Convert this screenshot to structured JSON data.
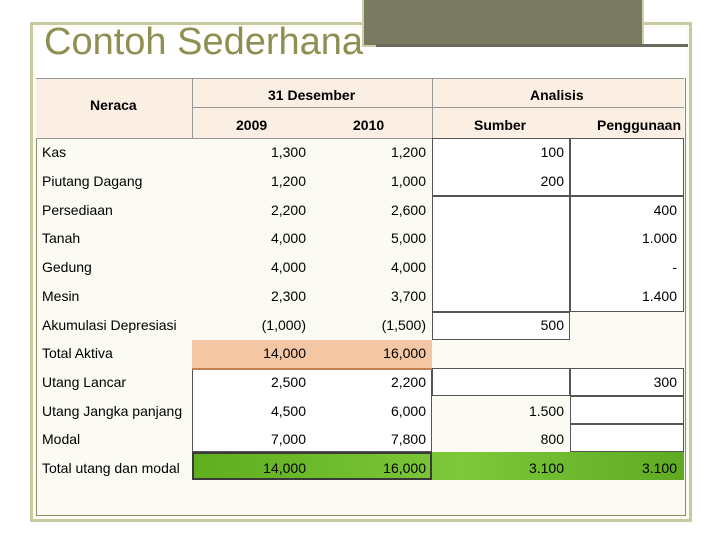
{
  "title": "Contoh Sederhana",
  "headers": {
    "neraca": "Neraca",
    "desember": "31 Desember",
    "y2009": "2009",
    "y2010": "2010",
    "analisis": "Analisis",
    "sumber": "Sumber",
    "penggunaan": "Penggunaan"
  },
  "rows": [
    {
      "label": "Kas",
      "y2009": "1,300",
      "y2010": "1,200",
      "sumber": "100",
      "penggunaan": ""
    },
    {
      "label": "Piutang Dagang",
      "y2009": "1,200",
      "y2010": "1,000",
      "sumber": "200",
      "penggunaan": ""
    },
    {
      "label": "Persediaan",
      "y2009": "2,200",
      "y2010": "2,600",
      "sumber": "",
      "penggunaan": "400"
    },
    {
      "label": "Tanah",
      "y2009": "4,000",
      "y2010": "5,000",
      "sumber": "",
      "penggunaan": "1.000"
    },
    {
      "label": "Gedung",
      "y2009": "4,000",
      "y2010": "4,000",
      "sumber": "",
      "penggunaan": "-"
    },
    {
      "label": "Mesin",
      "y2009": "2,300",
      "y2010": "3,700",
      "sumber": "",
      "penggunaan": "1.400"
    },
    {
      "label": "Akumulasi Depresiasi",
      "y2009": "(1,000)",
      "y2010": "(1,500)",
      "sumber": "500",
      "penggunaan": ""
    },
    {
      "label": "Total Aktiva",
      "y2009": "14,000",
      "y2010": "16,000",
      "sumber": "",
      "penggunaan": ""
    },
    {
      "label": "Utang Lancar",
      "y2009": "2,500",
      "y2010": "2,200",
      "sumber": "",
      "penggunaan": "300"
    },
    {
      "label": "Utang Jangka panjang",
      "y2009": "4,500",
      "y2010": "6,000",
      "sumber": "1.500",
      "penggunaan": ""
    },
    {
      "label": "Modal",
      "y2009": "7,000",
      "y2010": "7,800",
      "sumber": "800",
      "penggunaan": ""
    },
    {
      "label": "Total utang dan modal",
      "y2009": "14,000",
      "y2010": "16,000",
      "sumber": "3.100",
      "penggunaan": "3.100"
    }
  ],
  "colors": {
    "title": "#8f8f52",
    "header_band": "#fbeee2",
    "total_aktiva": "#f3c7a4",
    "total_green": "#66b322"
  }
}
